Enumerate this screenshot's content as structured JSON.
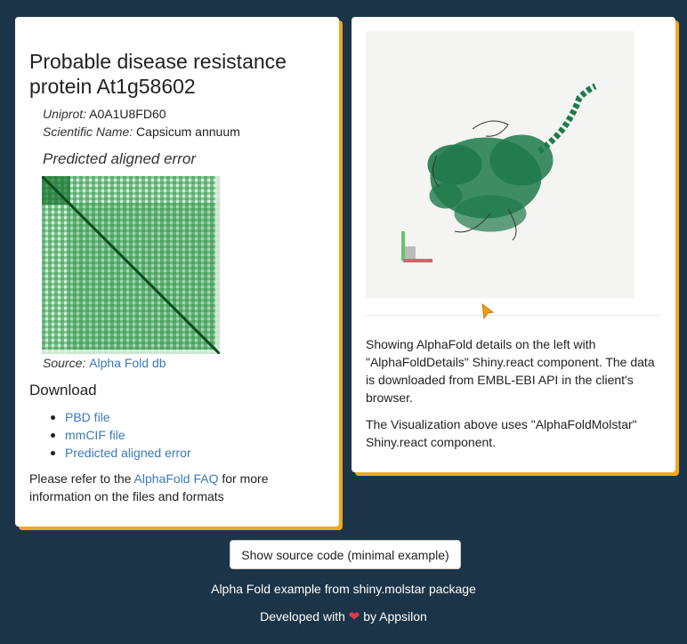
{
  "left": {
    "title": "Probable disease resistance protein At1g58602",
    "uniprot_label": "Uniprot:",
    "uniprot_value": "A0A1U8FD60",
    "sci_label": "Scientific Name:",
    "sci_value": "Capsicum annuum",
    "pae_heading": "Predicted aligned error",
    "source_label": "Source:",
    "source_link": "Alpha Fold db",
    "download_heading": "Download",
    "downloads": [
      "PBD file",
      "mmCIF file",
      "Predicted aligned error"
    ],
    "faq_prefix": "Please refer to the ",
    "faq_link": "AlphaFold FAQ",
    "faq_suffix": " for more information on the files and formats"
  },
  "right": {
    "para1": "Showing AlphaFold details on the left with \"AlphaFoldDetails\" Shiny.react component. The data is downloaded from EMBL-EBI API in the client's browser.",
    "para2": "The Visualization above uses \"AlphaFoldMolstar\" Shiny.react component."
  },
  "source_button": "Show source code (minimal example)",
  "footer": {
    "line1": "Alpha Fold example from shiny.molstar package",
    "dev_prefix": "Developed with ",
    "dev_suffix": " by Appsilon",
    "heart_icon": "heart-icon"
  },
  "colors": {
    "background": "#1b3448",
    "card_accent": "#f0a81c",
    "link": "#3a7ab5",
    "protein": "#1f7a4c",
    "heart": "#e03b4a"
  }
}
